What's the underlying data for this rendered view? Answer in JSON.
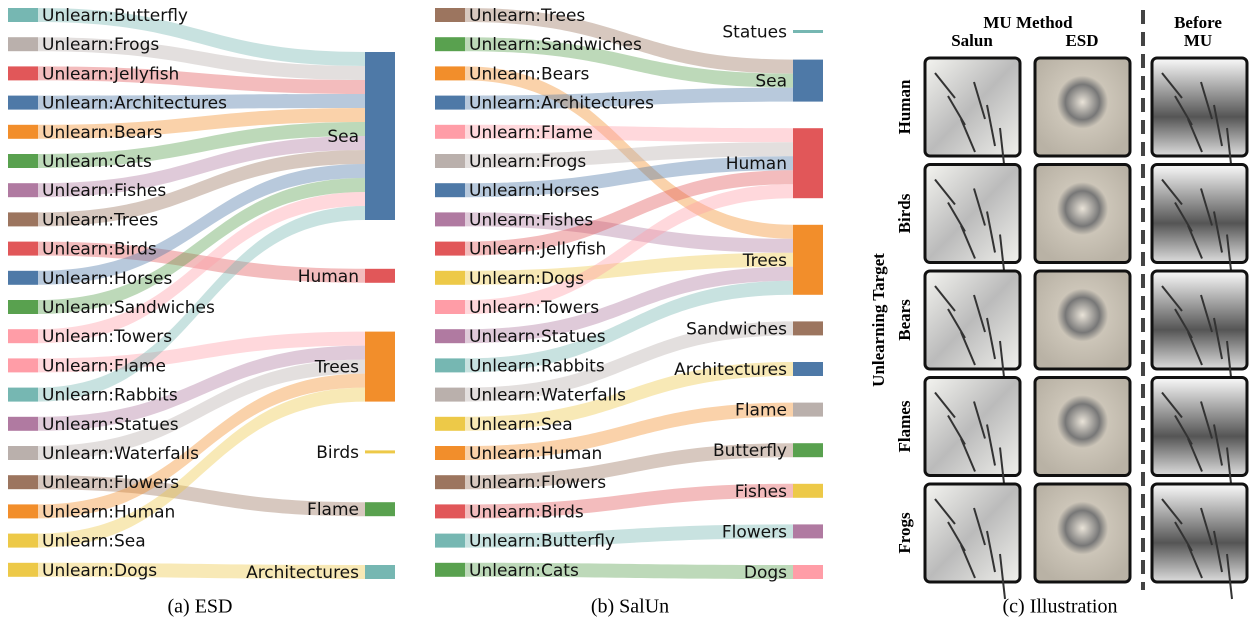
{
  "panels": [
    {
      "caption": "(a) ESD",
      "sources": [
        {
          "label": "Unlearn:Butterfly",
          "color": "#76b7b2"
        },
        {
          "label": "Unlearn:Frogs",
          "color": "#bab0ac"
        },
        {
          "label": "Unlearn:Jellyfish",
          "color": "#e15759"
        },
        {
          "label": "Unlearn:Architectures",
          "color": "#4e79a7"
        },
        {
          "label": "Unlearn:Bears",
          "color": "#f28e2b"
        },
        {
          "label": "Unlearn:Cats",
          "color": "#59a14f"
        },
        {
          "label": "Unlearn:Fishes",
          "color": "#b07aa1"
        },
        {
          "label": "Unlearn:Trees",
          "color": "#9c755f"
        },
        {
          "label": "Unlearn:Birds",
          "color": "#e15759"
        },
        {
          "label": "Unlearn:Horses",
          "color": "#4e79a7"
        },
        {
          "label": "Unlearn:Sandwiches",
          "color": "#59a14f"
        },
        {
          "label": "Unlearn:Towers",
          "color": "#ff9da7"
        },
        {
          "label": "Unlearn:Flame",
          "color": "#ff9da7"
        },
        {
          "label": "Unlearn:Rabbits",
          "color": "#76b7b2"
        },
        {
          "label": "Unlearn:Statues",
          "color": "#b07aa1"
        },
        {
          "label": "Unlearn:Waterfalls",
          "color": "#bab0ac"
        },
        {
          "label": "Unlearn:Flowers",
          "color": "#9c755f"
        },
        {
          "label": "Unlearn:Human",
          "color": "#f28e2b"
        },
        {
          "label": "Unlearn:Sea",
          "color": "#edc948"
        },
        {
          "label": "Unlearn:Dogs",
          "color": "#edc948"
        }
      ],
      "targets": [
        {
          "label": "Sea",
          "color": "#4e79a7"
        },
        {
          "label": "Human",
          "color": "#e15759"
        },
        {
          "label": "Trees",
          "color": "#f28e2b"
        },
        {
          "label": "Birds",
          "color": "#edc948"
        },
        {
          "label": "Flame",
          "color": "#59a14f"
        },
        {
          "label": "Architectures",
          "color": "#76b7b2"
        }
      ],
      "flows": [
        0,
        0,
        0,
        0,
        0,
        0,
        0,
        0,
        1,
        0,
        0,
        0,
        2,
        0,
        2,
        2,
        4,
        2,
        2,
        5
      ]
    },
    {
      "caption": "(b) SalUn",
      "sources": [
        {
          "label": "Unlearn:Trees",
          "color": "#9c755f"
        },
        {
          "label": "Unlearn:Sandwiches",
          "color": "#59a14f"
        },
        {
          "label": "Unlearn:Bears",
          "color": "#f28e2b"
        },
        {
          "label": "Unlearn:Architectures",
          "color": "#4e79a7"
        },
        {
          "label": "Unlearn:Flame",
          "color": "#ff9da7"
        },
        {
          "label": "Unlearn:Frogs",
          "color": "#bab0ac"
        },
        {
          "label": "Unlearn:Horses",
          "color": "#4e79a7"
        },
        {
          "label": "Unlearn:Fishes",
          "color": "#b07aa1"
        },
        {
          "label": "Unlearn:Jellyfish",
          "color": "#e15759"
        },
        {
          "label": "Unlearn:Dogs",
          "color": "#edc948"
        },
        {
          "label": "Unlearn:Towers",
          "color": "#ff9da7"
        },
        {
          "label": "Unlearn:Statues",
          "color": "#b07aa1"
        },
        {
          "label": "Unlearn:Rabbits",
          "color": "#76b7b2"
        },
        {
          "label": "Unlearn:Waterfalls",
          "color": "#bab0ac"
        },
        {
          "label": "Unlearn:Sea",
          "color": "#edc948"
        },
        {
          "label": "Unlearn:Human",
          "color": "#f28e2b"
        },
        {
          "label": "Unlearn:Flowers",
          "color": "#9c755f"
        },
        {
          "label": "Unlearn:Birds",
          "color": "#e15759"
        },
        {
          "label": "Unlearn:Butterfly",
          "color": "#76b7b2"
        },
        {
          "label": "Unlearn:Cats",
          "color": "#59a14f"
        }
      ],
      "targets": [
        {
          "label": "Statues",
          "color": "#76b7b2"
        },
        {
          "label": "Sea",
          "color": "#4e79a7"
        },
        {
          "label": "Human",
          "color": "#e15759"
        },
        {
          "label": "Trees",
          "color": "#f28e2b"
        },
        {
          "label": "Sandwiches",
          "color": "#9c755f"
        },
        {
          "label": "Architectures",
          "color": "#4e79a7"
        },
        {
          "label": "Flame",
          "color": "#bab0ac"
        },
        {
          "label": "Butterfly",
          "color": "#59a14f"
        },
        {
          "label": "Fishes",
          "color": "#edc948"
        },
        {
          "label": "Flowers",
          "color": "#b07aa1"
        },
        {
          "label": "Dogs",
          "color": "#ff9da7"
        }
      ],
      "flows": [
        1,
        1,
        3,
        1,
        2,
        2,
        2,
        3,
        2,
        3,
        2,
        3,
        3,
        4,
        5,
        6,
        7,
        8,
        9,
        10
      ]
    }
  ],
  "illustration": {
    "caption": "(c) Illustration",
    "header": "MU Method",
    "columns": [
      "Salun",
      "ESD"
    ],
    "before": [
      "Before",
      "MU"
    ],
    "axis_label": "Unlearning Target",
    "rows": [
      "Human",
      "Birds",
      "Bears",
      "Flames",
      "Frogs"
    ]
  }
}
